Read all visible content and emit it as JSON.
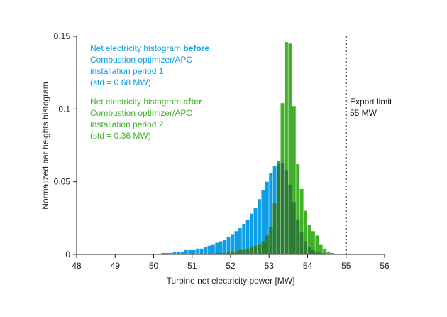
{
  "chart_data": {
    "type": "bar",
    "xlabel": "Turbine net electricity power [MW]",
    "ylabel": "Normalized bar heights histogram",
    "xlim": [
      48,
      56
    ],
    "ylim": [
      0,
      0.15
    ],
    "x_ticks": [
      "48",
      "49",
      "50",
      "51",
      "52",
      "53",
      "54",
      "55",
      "56"
    ],
    "y_ticks": [
      "0",
      "0.05",
      "0.1",
      "0.15"
    ],
    "bin_width": 0.1,
    "colors": {
      "before": "#0d9ee3",
      "after": "#43b02a",
      "overlap": "#2e7d32"
    },
    "series": [
      {
        "name": "Net electricity histogram before",
        "color": "#0d9ee3",
        "bin_starts": [
          50.2,
          50.3,
          50.4,
          50.5,
          50.6,
          50.7,
          50.8,
          50.9,
          51.0,
          51.1,
          51.2,
          51.3,
          51.4,
          51.5,
          51.6,
          51.7,
          51.8,
          51.9,
          52.0,
          52.1,
          52.2,
          52.3,
          52.4,
          52.5,
          52.6,
          52.7,
          52.8,
          52.9,
          53.0,
          53.1,
          53.2,
          53.3,
          53.4,
          53.5,
          53.6,
          53.7,
          53.8,
          53.9,
          54.0,
          54.1,
          54.2,
          54.3,
          54.4,
          54.5
        ],
        "values": [
          0.001,
          0.001,
          0.001,
          0.002,
          0.002,
          0.002,
          0.003,
          0.003,
          0.003,
          0.004,
          0.004,
          0.005,
          0.006,
          0.007,
          0.008,
          0.009,
          0.01,
          0.012,
          0.014,
          0.016,
          0.018,
          0.021,
          0.024,
          0.028,
          0.032,
          0.038,
          0.044,
          0.05,
          0.056,
          0.061,
          0.064,
          0.063,
          0.058,
          0.048,
          0.036,
          0.024,
          0.015,
          0.009,
          0.005,
          0.003,
          0.002,
          0.001,
          0.001,
          0.0005
        ]
      },
      {
        "name": "Net electricity histogram after",
        "color": "#43b02a",
        "bin_starts": [
          51.6,
          51.7,
          51.8,
          51.9,
          52.0,
          52.1,
          52.2,
          52.3,
          52.4,
          52.5,
          52.6,
          52.7,
          52.8,
          52.9,
          53.0,
          53.1,
          53.2,
          53.3,
          53.4,
          53.5,
          53.6,
          53.7,
          53.8,
          53.9,
          54.0,
          54.1,
          54.2,
          54.3,
          54.4,
          54.5,
          54.6
        ],
        "values": [
          0.001,
          0.001,
          0.001,
          0.002,
          0.002,
          0.002,
          0.003,
          0.003,
          0.004,
          0.005,
          0.006,
          0.007,
          0.009,
          0.013,
          0.019,
          0.035,
          0.062,
          0.104,
          0.146,
          0.145,
          0.102,
          0.062,
          0.045,
          0.03,
          0.02,
          0.016,
          0.013,
          0.007,
          0.004,
          0.002,
          0.001
        ]
      }
    ],
    "legend": {
      "before": {
        "line1_prefix": "Net electricity histogram ",
        "line1_bold": "before",
        "line2": "Combustion optimizer/APC",
        "line3": "installation period 1",
        "line4": "(std = 0.68 MW)"
      },
      "after": {
        "line1_prefix": "Net electricity histogram ",
        "line1_bold": "after",
        "line2": "Combustion optimizer/APC",
        "line3": "installation period 2",
        "line4": "(std = 0.36 MW)"
      }
    },
    "annotation": {
      "x": 55,
      "line1": "Export limit",
      "line2": "55 MW"
    }
  }
}
